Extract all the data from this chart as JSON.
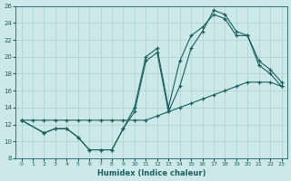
{
  "xlabel": "Humidex (Indice chaleur)",
  "bg_color": "#cce8e8",
  "grid_color": "#afd0d0",
  "line_color": "#1a6060",
  "xlim": [
    -0.5,
    23.5
  ],
  "ylim": [
    8,
    26
  ],
  "xticks": [
    0,
    1,
    2,
    3,
    4,
    5,
    6,
    7,
    8,
    9,
    10,
    11,
    12,
    13,
    14,
    15,
    16,
    17,
    18,
    19,
    20,
    21,
    22,
    23
  ],
  "yticks": [
    8,
    10,
    12,
    14,
    16,
    18,
    20,
    22,
    24,
    26
  ],
  "line1_x": [
    0,
    1,
    2,
    3,
    4,
    5,
    6,
    7,
    8,
    9,
    10,
    11,
    12,
    13,
    14,
    15,
    16,
    17,
    18,
    19,
    20,
    21,
    22,
    23
  ],
  "line1_y": [
    12.5,
    12.5,
    12.5,
    12.5,
    12.5,
    12.5,
    12.5,
    12.5,
    12.5,
    12.5,
    12.5,
    12.5,
    13.0,
    13.5,
    14.0,
    14.5,
    15.0,
    15.5,
    16.0,
    16.5,
    17.0,
    17.0,
    17.0,
    16.5
  ],
  "line2_x": [
    0,
    2,
    3,
    4,
    5,
    6,
    7,
    8,
    9,
    10,
    11,
    12,
    13,
    14,
    15,
    16,
    17,
    18,
    19,
    20,
    21,
    22,
    23
  ],
  "line2_y": [
    12.5,
    11.0,
    11.5,
    11.5,
    10.5,
    9.0,
    9.0,
    9.0,
    11.5,
    13.5,
    19.5,
    20.5,
    13.5,
    16.5,
    21.0,
    23.0,
    25.5,
    25.0,
    23.0,
    22.5,
    19.0,
    18.0,
    16.5
  ],
  "line3_x": [
    0,
    2,
    3,
    4,
    5,
    6,
    7,
    8,
    9,
    10,
    11,
    12,
    13,
    14,
    15,
    16,
    17,
    18,
    19,
    20,
    21,
    22,
    23
  ],
  "line3_y": [
    12.5,
    11.0,
    11.5,
    11.5,
    10.5,
    9.0,
    9.0,
    9.0,
    11.5,
    14.0,
    20.0,
    21.0,
    14.0,
    19.5,
    22.5,
    23.5,
    25.0,
    24.5,
    22.5,
    22.5,
    19.5,
    18.5,
    17.0
  ]
}
